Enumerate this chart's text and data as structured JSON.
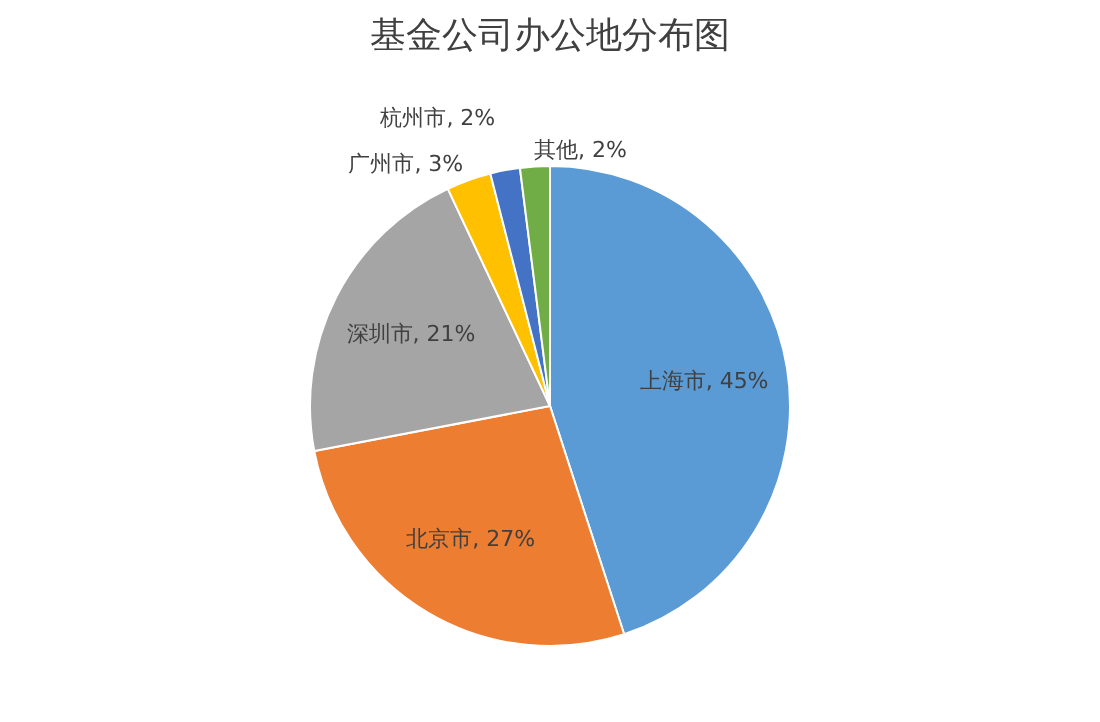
{
  "chart_data": {
    "type": "pie",
    "title": "基金公司办公地分布图",
    "categories": [
      "上海市",
      "北京市",
      "深圳市",
      "广州市",
      "杭州市",
      "其他"
    ],
    "values": [
      45,
      27,
      21,
      3,
      2,
      2
    ],
    "value_labels": [
      "45%",
      "27%",
      "21%",
      "3%",
      "2%",
      "2%"
    ],
    "colors": [
      "#5b9bd5",
      "#ed7d31",
      "#a5a5a5",
      "#ffc000",
      "#4472c4",
      "#70ad47"
    ],
    "legend": false
  }
}
